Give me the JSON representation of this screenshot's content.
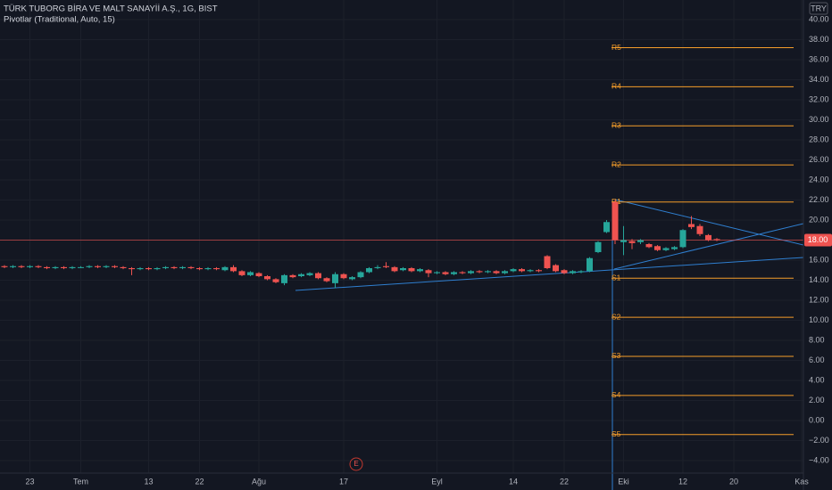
{
  "chart_data": {
    "type": "candlestick",
    "title": "TÜRK TUBORG BİRA VE MALT SANAYİİ A.Ş., 1G, BIST",
    "indicator": "Pivotlar (Traditional, Auto, 15)",
    "currency": "TRY",
    "event_marker": "E",
    "categories": [
      null,
      null,
      null,
      "23",
      null,
      null,
      null,
      null,
      null,
      "Tem",
      null,
      null,
      null,
      null,
      null,
      null,
      null,
      "13",
      null,
      null,
      null,
      null,
      null,
      "22",
      null,
      null,
      null,
      null,
      null,
      null,
      "Ağu",
      null,
      null,
      null,
      null,
      null,
      null,
      null,
      null,
      null,
      "17",
      null,
      null,
      null,
      null,
      null,
      null,
      null,
      null,
      null,
      null,
      "Eyl",
      null,
      null,
      null,
      null,
      null,
      null,
      null,
      null,
      "14",
      null,
      null,
      null,
      null,
      null,
      "22",
      null,
      null,
      null,
      null,
      null,
      null,
      "Eki",
      null,
      null,
      null,
      null,
      null,
      null,
      "12",
      null,
      null,
      null,
      null,
      null,
      "20",
      null,
      null,
      null,
      null,
      null,
      null,
      null,
      "Kas"
    ],
    "open": [
      15.4,
      15.3,
      15.4,
      15.3,
      15.4,
      15.3,
      15.2,
      15.3,
      15.2,
      15.3,
      15.3,
      15.4,
      15.3,
      15.4,
      15.3,
      15.2,
      15.1,
      15.2,
      15.1,
      15.2,
      15.3,
      15.2,
      15.3,
      15.2,
      15.1,
      15.2,
      15.0,
      15.3,
      14.9,
      14.5,
      14.7,
      14.4,
      14.1,
      13.7,
      14.5,
      14.4,
      14.5,
      14.7,
      14.2,
      13.7,
      14.6,
      14.1,
      14.3,
      14.8,
      15.2,
      15.4,
      15.3,
      15.0,
      15.2,
      14.9,
      15.0,
      14.7,
      14.8,
      14.6,
      14.8,
      14.7,
      14.9,
      14.8,
      14.9,
      14.7,
      14.9,
      15.1,
      14.9,
      15.0,
      16.4,
      15.5,
      15.0,
      14.7,
      14.8,
      14.9,
      16.8,
      18.8,
      21.8,
      17.8,
      17.9,
      17.8,
      17.6,
      17.4,
      17.0,
      17.1,
      17.3,
      19.6,
      19.4,
      18.5,
      18.1,
      null,
      null,
      null,
      null,
      null,
      null,
      null,
      null,
      null,
      null
    ],
    "high": [
      15.5,
      15.5,
      15.5,
      15.5,
      15.5,
      15.4,
      15.4,
      15.4,
      15.4,
      15.4,
      15.5,
      15.5,
      15.5,
      15.5,
      15.4,
      15.3,
      15.3,
      15.3,
      15.3,
      15.4,
      15.4,
      15.4,
      15.4,
      15.3,
      15.3,
      15.3,
      15.4,
      15.5,
      15.0,
      14.9,
      14.8,
      14.5,
      14.2,
      14.6,
      14.6,
      14.7,
      14.8,
      14.8,
      14.3,
      14.8,
      14.7,
      14.4,
      14.9,
      15.3,
      15.5,
      15.8,
      15.4,
      15.3,
      15.3,
      15.2,
      15.1,
      14.9,
      14.9,
      14.9,
      14.9,
      15.0,
      15.0,
      15.0,
      15.0,
      15.0,
      15.2,
      15.2,
      15.1,
      15.1,
      16.5,
      15.6,
      15.1,
      15.0,
      15.0,
      16.3,
      17.9,
      20.0,
      22.0,
      19.4,
      18.1,
      18.1,
      17.7,
      17.5,
      17.3,
      17.4,
      19.1,
      20.4,
      19.6,
      18.6,
      18.2,
      null,
      null,
      null,
      null,
      null,
      null,
      null,
      null,
      null,
      null
    ],
    "low": [
      15.2,
      15.2,
      15.2,
      15.2,
      15.2,
      15.1,
      15.1,
      15.1,
      15.1,
      15.2,
      15.2,
      15.2,
      15.2,
      15.2,
      15.1,
      14.5,
      15.0,
      15.0,
      15.0,
      15.1,
      15.1,
      15.1,
      15.1,
      15.0,
      15.0,
      15.0,
      14.9,
      14.8,
      14.4,
      14.4,
      14.3,
      14.0,
      13.7,
      13.5,
      14.2,
      14.3,
      14.4,
      14.1,
      13.8,
      13.2,
      14.1,
      14.0,
      14.2,
      14.7,
      15.1,
      15.2,
      14.8,
      14.9,
      14.8,
      14.8,
      14.3,
      14.6,
      14.5,
      14.5,
      14.6,
      14.6,
      14.7,
      14.7,
      14.6,
      14.6,
      14.8,
      14.8,
      14.8,
      14.8,
      15.1,
      14.8,
      14.6,
      14.6,
      14.7,
      14.8,
      16.7,
      18.7,
      17.6,
      16.5,
      17.1,
      17.6,
      17.2,
      16.9,
      16.9,
      17.0,
      17.2,
      19.1,
      18.4,
      17.9,
      17.9,
      null,
      null,
      null,
      null,
      null,
      null,
      null,
      null,
      null,
      null
    ],
    "close": [
      15.3,
      15.4,
      15.3,
      15.4,
      15.3,
      15.2,
      15.3,
      15.2,
      15.3,
      15.3,
      15.4,
      15.3,
      15.4,
      15.3,
      15.2,
      15.1,
      15.2,
      15.1,
      15.2,
      15.3,
      15.2,
      15.3,
      15.2,
      15.1,
      15.2,
      15.1,
      15.3,
      14.9,
      14.5,
      14.8,
      14.4,
      14.1,
      13.8,
      14.5,
      14.3,
      14.6,
      14.7,
      14.2,
      13.9,
      14.6,
      14.2,
      14.3,
      14.8,
      15.2,
      15.3,
      15.3,
      14.9,
      15.2,
      14.9,
      15.1,
      14.7,
      14.8,
      14.6,
      14.8,
      14.7,
      14.9,
      14.8,
      14.9,
      14.7,
      14.9,
      15.1,
      14.9,
      15.0,
      14.9,
      15.2,
      14.9,
      14.7,
      14.9,
      14.9,
      16.2,
      17.8,
      19.8,
      18.0,
      18.0,
      17.7,
      18.0,
      17.3,
      17.0,
      17.2,
      17.3,
      19.0,
      19.3,
      18.6,
      18.0,
      18.0,
      null,
      null,
      null,
      null,
      null,
      null,
      null,
      null,
      null,
      null
    ],
    "up_color": "#26a69a",
    "down_color": "#ef5350",
    "pivot_color": "#f59d2a",
    "pivot_start": 72,
    "pivots": [
      {
        "name": "R5",
        "value": 37.2
      },
      {
        "name": "R4",
        "value": 33.3
      },
      {
        "name": "R3",
        "value": 29.4
      },
      {
        "name": "R2",
        "value": 25.5
      },
      {
        "name": "R1",
        "value": 21.8
      },
      {
        "name": "S1",
        "value": 14.2
      },
      {
        "name": "S2",
        "value": 10.3
      },
      {
        "name": "S3",
        "value": 6.4
      },
      {
        "name": "S4",
        "value": 2.5
      },
      {
        "name": "S5",
        "value": -1.4
      }
    ],
    "last_price": {
      "value": 18,
      "label": "18.00"
    },
    "last_price_color": "#ef5350",
    "ylim": [
      -5.16,
      41.96
    ],
    "yticks": [
      {
        "value": 40,
        "label": "40.00"
      },
      {
        "value": 38,
        "label": "38.00"
      },
      {
        "value": 36,
        "label": "36.00"
      },
      {
        "value": 34,
        "label": "34.00"
      },
      {
        "value": 32,
        "label": "32.00"
      },
      {
        "value": 30,
        "label": "30.00"
      },
      {
        "value": 28,
        "label": "28.00"
      },
      {
        "value": 26,
        "label": "26.00"
      },
      {
        "value": 24,
        "label": "24.00"
      },
      {
        "value": 22,
        "label": "22.00"
      },
      {
        "value": 20,
        "label": "20.00"
      },
      {
        "value": 18,
        "label": "18.00"
      },
      {
        "value": 16,
        "label": "16.00"
      },
      {
        "value": 14,
        "label": "14.00"
      },
      {
        "value": 12,
        "label": "12.00"
      },
      {
        "value": 10,
        "label": "10.00"
      },
      {
        "value": 8,
        "label": "8.00"
      },
      {
        "value": 6,
        "label": "6.00"
      },
      {
        "value": 4,
        "label": "4.00"
      },
      {
        "value": 2,
        "label": "2.00"
      },
      {
        "value": 0,
        "label": "0.00"
      },
      {
        "value": -2,
        "label": "−2.00"
      },
      {
        "value": -4,
        "label": "−4.00"
      }
    ],
    "grid": true
  }
}
